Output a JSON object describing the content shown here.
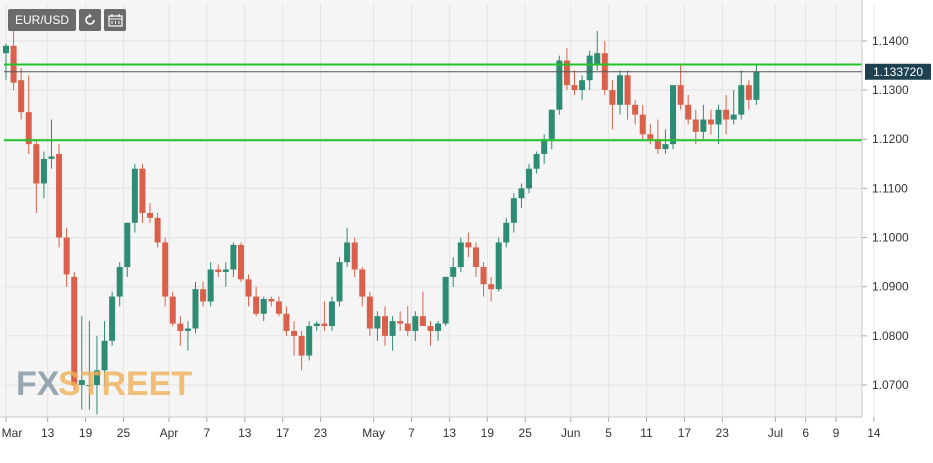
{
  "toolbar": {
    "symbol": "EUR/USD",
    "refresh_icon": "refresh-icon",
    "calendar_icon": "calendar-icon"
  },
  "watermark": {
    "part1": "FX",
    "part2": "STREET"
  },
  "colors": {
    "up": "#2e8b74",
    "down": "#d9614c",
    "level": "#22c32a",
    "current_line": "#555555",
    "price_tag": "#1e4152",
    "watermark_fx": "#8a9aa6",
    "watermark_street": "#f0b15a"
  },
  "chart_data": {
    "type": "candlestick",
    "ylim": [
      1.0635,
      1.1475
    ],
    "y_ticks": [
      1.07,
      1.08,
      1.09,
      1.1,
      1.11,
      1.12,
      1.13,
      1.14
    ],
    "y_tick_labels": [
      "1.0700",
      "1.0800",
      "1.0900",
      "1.1000",
      "1.1100",
      "1.1200",
      "1.1300",
      "1.1400"
    ],
    "x_tick_labels": [
      "Mar",
      "13",
      "19",
      "25",
      "Apr",
      "7",
      "13",
      "17",
      "23",
      "May",
      "7",
      "13",
      "19",
      "25",
      "Jun",
      "5",
      "11",
      "17",
      "23",
      "Jul",
      "6",
      "9",
      "14"
    ],
    "x_tick_index": [
      0,
      5.5,
      10.5,
      15.5,
      21.5,
      26.5,
      31.5,
      36.5,
      41.5,
      48.5,
      53.5,
      58.5,
      63.5,
      68.5,
      74.5,
      79.5,
      84.5,
      89.5,
      94.5,
      101.5,
      105.5,
      109.5,
      114.5
    ],
    "horizontal_levels": [
      1.1352,
      1.1198
    ],
    "current_price": 1.13372,
    "current_price_label": "1.133720",
    "candles": [
      [
        1.1375,
        1.1395,
        1.132,
        1.139
      ],
      [
        1.139,
        1.142,
        1.13,
        1.1315
      ],
      [
        1.132,
        1.1345,
        1.124,
        1.1255
      ],
      [
        1.1255,
        1.133,
        1.117,
        1.119
      ],
      [
        1.119,
        1.12,
        1.105,
        1.111
      ],
      [
        1.111,
        1.1175,
        1.108,
        1.116
      ],
      [
        1.116,
        1.124,
        1.114,
        1.1165
      ],
      [
        1.117,
        1.119,
        1.098,
        1.1
      ],
      [
        1.1,
        1.102,
        1.09,
        1.0925
      ],
      [
        1.092,
        1.093,
        1.069,
        1.07
      ],
      [
        1.07,
        1.084,
        1.065,
        1.071
      ],
      [
        1.07,
        1.083,
        1.065,
        1.07
      ],
      [
        1.07,
        1.08,
        1.064,
        1.073
      ],
      [
        1.073,
        1.083,
        1.07,
        1.079
      ],
      [
        1.079,
        1.089,
        1.078,
        1.088
      ],
      [
        1.088,
        1.095,
        1.086,
        1.094
      ],
      [
        1.094,
        1.103,
        1.092,
        1.103
      ],
      [
        1.103,
        1.115,
        1.101,
        1.114
      ],
      [
        1.114,
        1.115,
        1.103,
        1.105
      ],
      [
        1.105,
        1.107,
        1.103,
        1.104
      ],
      [
        1.104,
        1.105,
        1.098,
        1.099
      ],
      [
        1.099,
        1.1,
        1.086,
        1.088
      ],
      [
        1.088,
        1.089,
        1.082,
        1.0825
      ],
      [
        1.0825,
        1.084,
        1.078,
        1.081
      ],
      [
        1.081,
        1.083,
        1.077,
        1.0815
      ],
      [
        1.0815,
        1.091,
        1.0805,
        1.0895
      ],
      [
        1.0895,
        1.091,
        1.086,
        1.087
      ],
      [
        1.087,
        1.095,
        1.086,
        1.0935
      ],
      [
        1.0935,
        1.0945,
        1.092,
        1.093
      ],
      [
        1.093,
        1.095,
        1.09,
        1.0935
      ],
      [
        1.0935,
        1.099,
        1.092,
        1.0985
      ],
      [
        1.0985,
        1.099,
        1.091,
        1.0915
      ],
      [
        1.0915,
        1.0925,
        1.086,
        1.088
      ],
      [
        1.088,
        1.09,
        1.084,
        1.0845
      ],
      [
        1.0845,
        1.088,
        1.083,
        1.0875
      ],
      [
        1.0875,
        1.088,
        1.086,
        1.087
      ],
      [
        1.087,
        1.088,
        1.084,
        1.0845
      ],
      [
        1.0845,
        1.086,
        1.08,
        1.081
      ],
      [
        1.081,
        1.083,
        1.076,
        1.08
      ],
      [
        1.08,
        1.081,
        1.073,
        1.076
      ],
      [
        1.076,
        1.083,
        1.075,
        1.082
      ],
      [
        1.082,
        1.083,
        1.081,
        1.0825
      ],
      [
        1.0825,
        1.087,
        1.081,
        1.082
      ],
      [
        1.082,
        1.088,
        1.081,
        1.087
      ],
      [
        1.087,
        1.096,
        1.086,
        1.095
      ],
      [
        1.095,
        1.102,
        1.094,
        1.099
      ],
      [
        1.099,
        1.1,
        1.092,
        1.0935
      ],
      [
        1.0935,
        1.094,
        1.086,
        1.088
      ],
      [
        1.088,
        1.089,
        1.08,
        1.0815
      ],
      [
        1.0815,
        1.085,
        1.079,
        1.084
      ],
      [
        1.084,
        1.086,
        1.078,
        1.08
      ],
      [
        1.08,
        1.084,
        1.077,
        1.083
      ],
      [
        1.083,
        1.085,
        1.081,
        1.0825
      ],
      [
        1.0825,
        1.086,
        1.08,
        1.081
      ],
      [
        1.081,
        1.085,
        1.079,
        1.084
      ],
      [
        1.084,
        1.089,
        1.082,
        1.082
      ],
      [
        1.082,
        1.083,
        1.078,
        1.081
      ],
      [
        1.081,
        1.083,
        1.079,
        1.0825
      ],
      [
        1.0825,
        1.092,
        1.082,
        1.092
      ],
      [
        1.092,
        1.096,
        1.09,
        1.094
      ],
      [
        1.094,
        1.1,
        1.093,
        1.099
      ],
      [
        1.099,
        1.101,
        1.096,
        1.098
      ],
      [
        1.098,
        1.099,
        1.092,
        1.094
      ],
      [
        1.094,
        1.095,
        1.088,
        1.0905
      ],
      [
        1.0905,
        1.092,
        1.087,
        1.0895
      ],
      [
        1.0895,
        1.1,
        1.089,
        1.099
      ],
      [
        1.099,
        1.104,
        1.098,
        1.103
      ],
      [
        1.103,
        1.109,
        1.101,
        1.108
      ],
      [
        1.108,
        1.111,
        1.106,
        1.11
      ],
      [
        1.11,
        1.115,
        1.109,
        1.114
      ],
      [
        1.114,
        1.1175,
        1.113,
        1.117
      ],
      [
        1.117,
        1.121,
        1.115,
        1.12
      ],
      [
        1.12,
        1.126,
        1.118,
        1.126
      ],
      [
        1.126,
        1.137,
        1.125,
        1.136
      ],
      [
        1.136,
        1.1385,
        1.13,
        1.131
      ],
      [
        1.131,
        1.134,
        1.129,
        1.13
      ],
      [
        1.13,
        1.133,
        1.128,
        1.132
      ],
      [
        1.132,
        1.138,
        1.13,
        1.137
      ],
      [
        1.135,
        1.142,
        1.134,
        1.1375
      ],
      [
        1.1375,
        1.14,
        1.129,
        1.13
      ],
      [
        1.13,
        1.132,
        1.122,
        1.127
      ],
      [
        1.127,
        1.134,
        1.125,
        1.133
      ],
      [
        1.133,
        1.134,
        1.124,
        1.127
      ],
      [
        1.127,
        1.128,
        1.123,
        1.125
      ],
      [
        1.125,
        1.127,
        1.12,
        1.121
      ],
      [
        1.121,
        1.123,
        1.119,
        1.12
      ],
      [
        1.12,
        1.124,
        1.117,
        1.118
      ],
      [
        1.118,
        1.122,
        1.117,
        1.119
      ],
      [
        1.119,
        1.131,
        1.118,
        1.131
      ],
      [
        1.131,
        1.135,
        1.126,
        1.127
      ],
      [
        1.127,
        1.129,
        1.123,
        1.124
      ],
      [
        1.124,
        1.126,
        1.119,
        1.1215
      ],
      [
        1.1215,
        1.127,
        1.12,
        1.124
      ],
      [
        1.124,
        1.126,
        1.121,
        1.123
      ],
      [
        1.123,
        1.127,
        1.119,
        1.126
      ],
      [
        1.126,
        1.129,
        1.121,
        1.124
      ],
      [
        1.124,
        1.13,
        1.123,
        1.125
      ],
      [
        1.125,
        1.134,
        1.124,
        1.131
      ],
      [
        1.131,
        1.132,
        1.126,
        1.128
      ],
      [
        1.128,
        1.135,
        1.127,
        1.1337
      ]
    ]
  }
}
